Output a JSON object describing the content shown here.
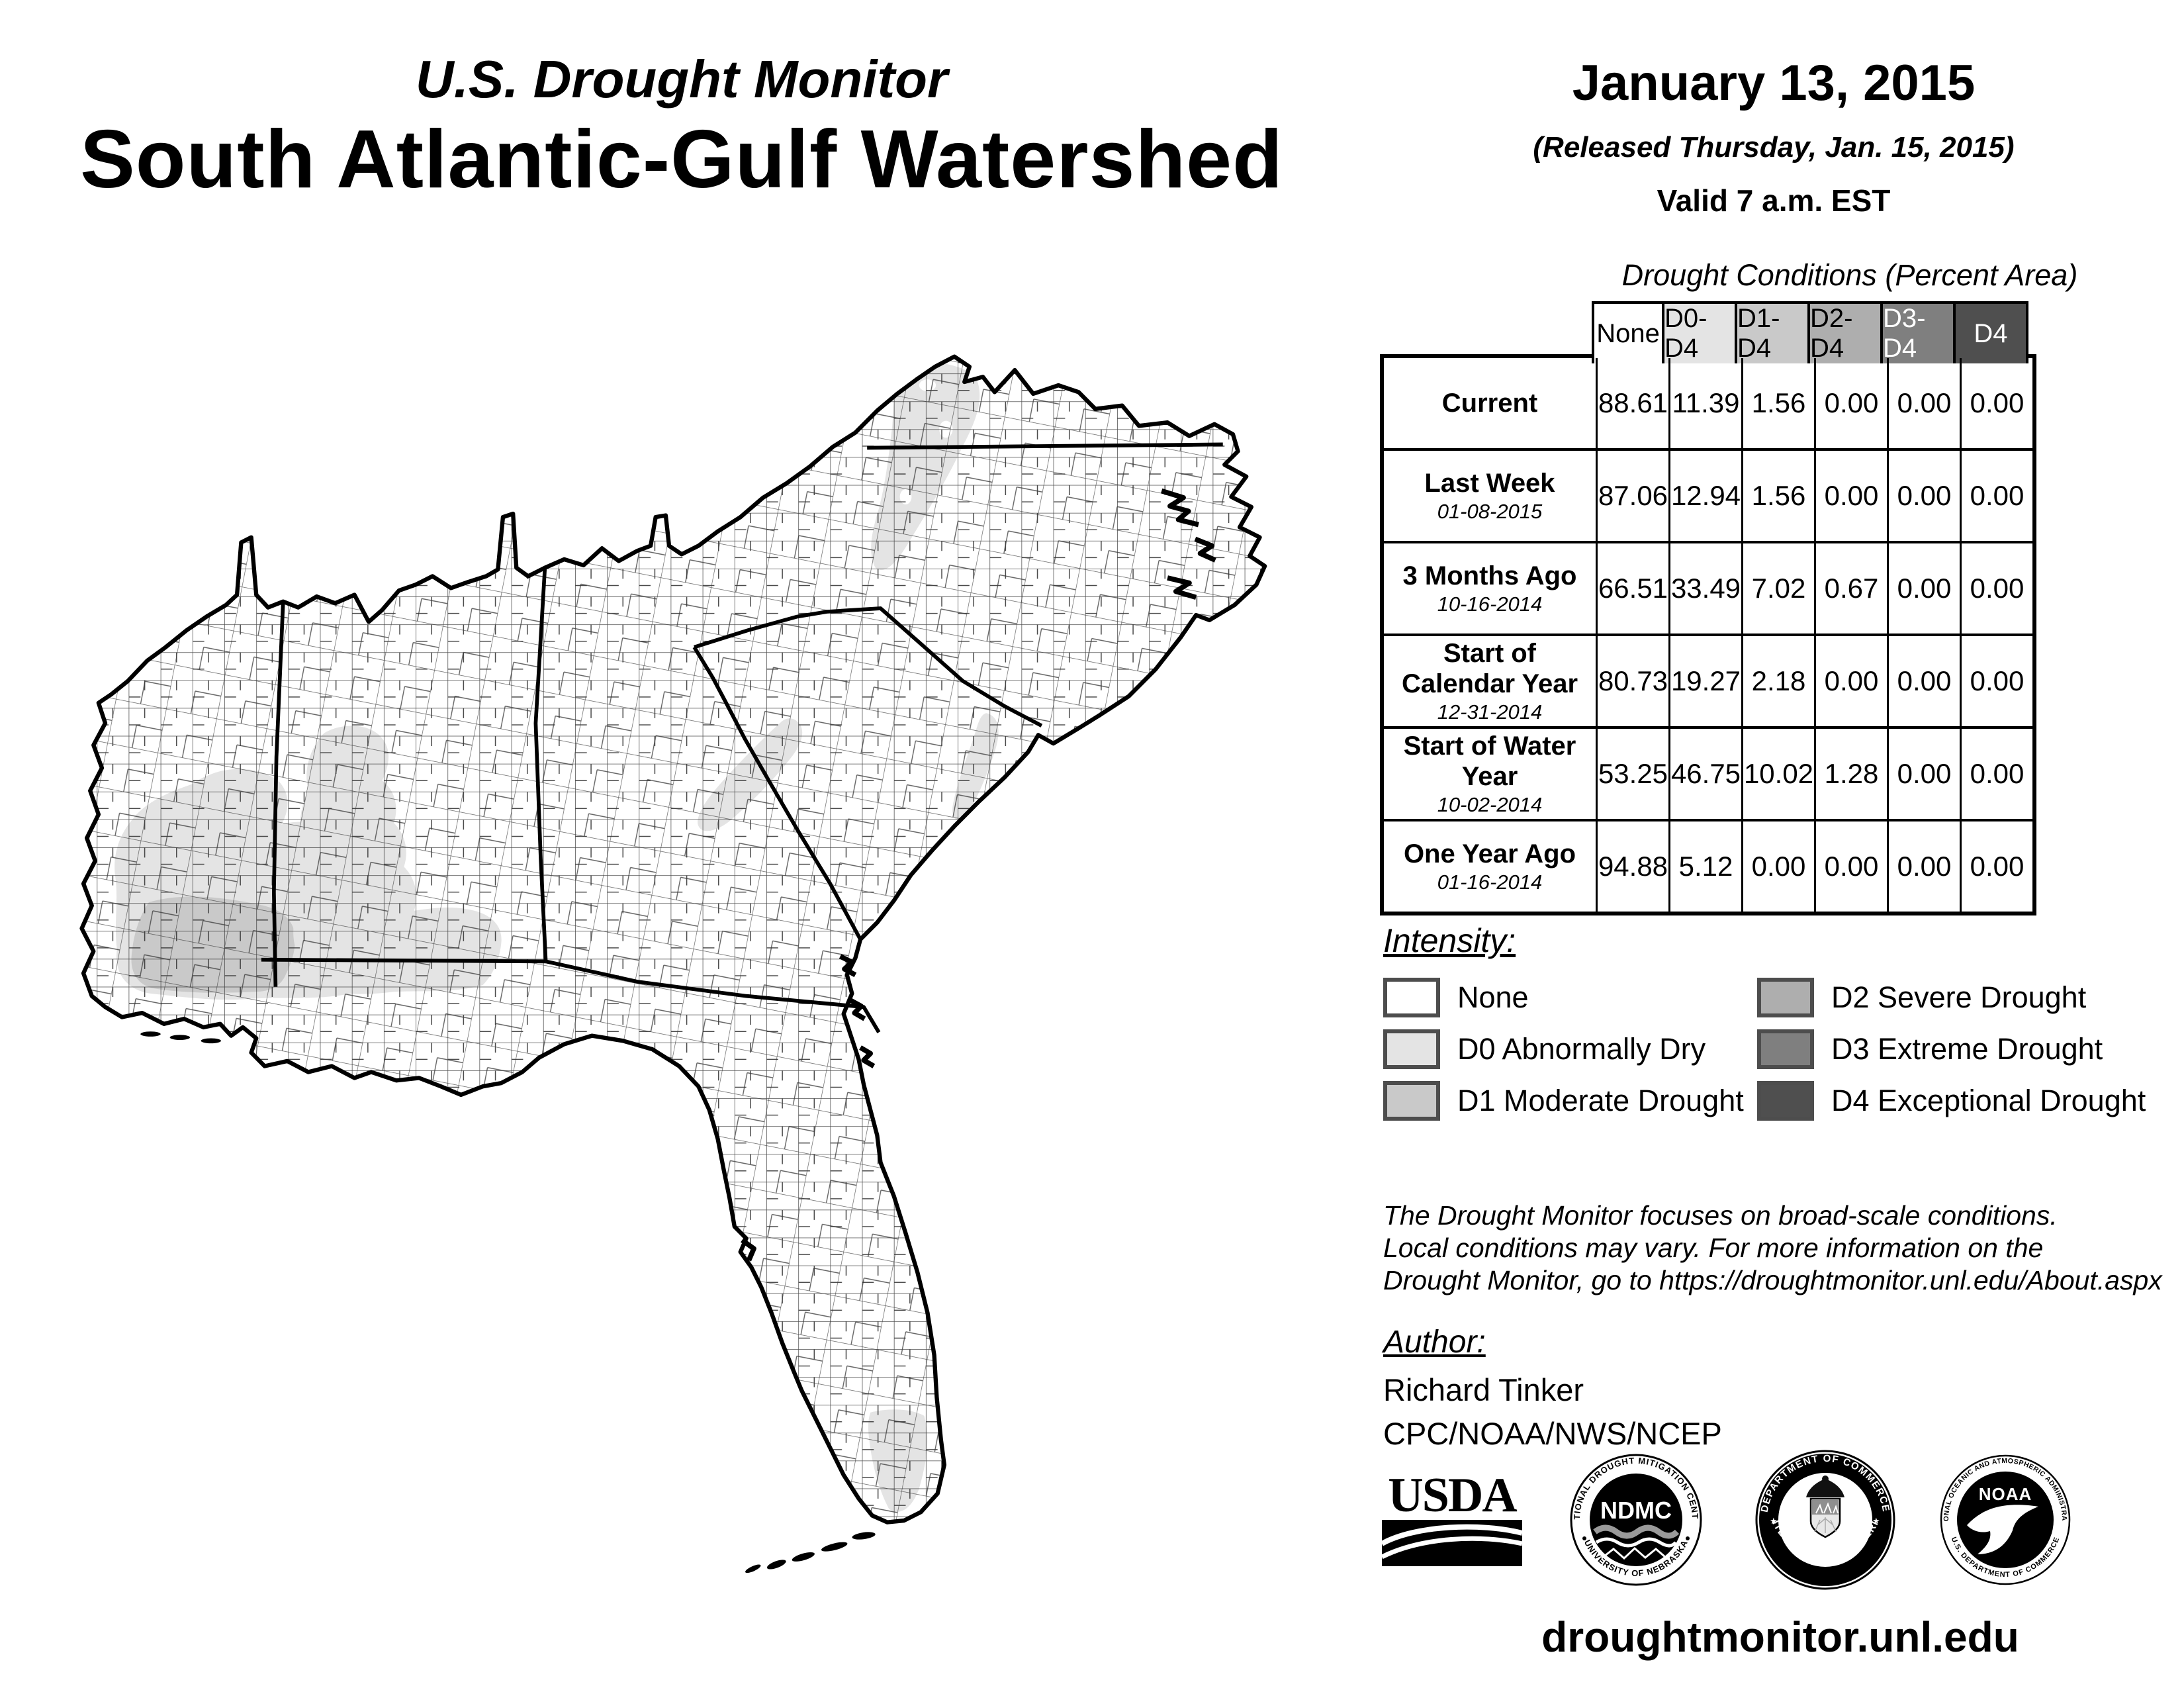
{
  "header": {
    "monitor_title": "U.S. Drought Monitor",
    "region_title": "South Atlantic-Gulf Watershed",
    "date": "January 13, 2015",
    "released": "(Released Thursday, Jan. 15, 2015)",
    "valid": "Valid 7 a.m. EST"
  },
  "table": {
    "title": "Drought Conditions (Percent Area)",
    "columns": [
      {
        "label": "None",
        "bg": "#ffffff",
        "fg": "#000000"
      },
      {
        "label": "D0-D4",
        "bg": "#e4e4e4",
        "fg": "#000000"
      },
      {
        "label": "D1-D4",
        "bg": "#c9c9c9",
        "fg": "#000000"
      },
      {
        "label": "D2-D4",
        "bg": "#aeaeae",
        "fg": "#000000"
      },
      {
        "label": "D3-D4",
        "bg": "#7f7f7f",
        "fg": "#ffffff"
      },
      {
        "label": "D4",
        "bg": "#4f4f4f",
        "fg": "#ffffff"
      }
    ],
    "rows": [
      {
        "label": "Current",
        "date": "",
        "values": [
          "88.61",
          "11.39",
          "1.56",
          "0.00",
          "0.00",
          "0.00"
        ]
      },
      {
        "label": "Last Week",
        "date": "01-08-2015",
        "values": [
          "87.06",
          "12.94",
          "1.56",
          "0.00",
          "0.00",
          "0.00"
        ]
      },
      {
        "label": "3 Months Ago",
        "date": "10-16-2014",
        "values": [
          "66.51",
          "33.49",
          "7.02",
          "0.67",
          "0.00",
          "0.00"
        ]
      },
      {
        "label": "Start of Calendar Year",
        "date": "12-31-2014",
        "values": [
          "80.73",
          "19.27",
          "2.18",
          "0.00",
          "0.00",
          "0.00"
        ]
      },
      {
        "label": "Start of Water Year",
        "date": "10-02-2014",
        "values": [
          "53.25",
          "46.75",
          "10.02",
          "1.28",
          "0.00",
          "0.00"
        ]
      },
      {
        "label": "One Year Ago",
        "date": "01-16-2014",
        "values": [
          "94.88",
          "5.12",
          "0.00",
          "0.00",
          "0.00",
          "0.00"
        ]
      }
    ]
  },
  "intensity": {
    "label": "Intensity:",
    "items": [
      {
        "name": "None",
        "color": "#ffffff"
      },
      {
        "name": "D0 Abnormally Dry",
        "color": "#e4e4e4"
      },
      {
        "name": "D1 Moderate Drought",
        "color": "#c9c9c9"
      },
      {
        "name": "D2 Severe Drought",
        "color": "#aeaeae"
      },
      {
        "name": "D3 Extreme Drought",
        "color": "#7f7f7f"
      },
      {
        "name": "D4 Exceptional Drought",
        "color": "#4f4f4f"
      }
    ]
  },
  "disclaimer": {
    "lines": [
      "The Drought Monitor focuses on broad-scale conditions.",
      "Local conditions may vary. For more information on the",
      "Drought Monitor, go to https://droughtmonitor.unl.edu/About.aspx"
    ]
  },
  "author": {
    "label": "Author:",
    "name": "Richard Tinker",
    "org": "CPC/NOAA/NWS/NCEP"
  },
  "logos": {
    "usda": {
      "text": "USDA"
    },
    "ndmc": {
      "top": "NATIONAL DROUGHT MITIGATION CENTER",
      "bottom": "UNIVERSITY OF NEBRASKA",
      "center": "NDMC"
    },
    "doc": {
      "top": "DEPARTMENT OF COMMERCE",
      "bottom": "UNITED STATES OF AMERICA"
    },
    "noaa": {
      "top": "NATIONAL OCEANIC AND ATMOSPHERIC ADMINISTRATION",
      "bottom": "U.S. DEPARTMENT OF COMMERCE",
      "center": "NOAA"
    }
  },
  "footer": {
    "url": "droughtmonitor.unl.edu"
  }
}
